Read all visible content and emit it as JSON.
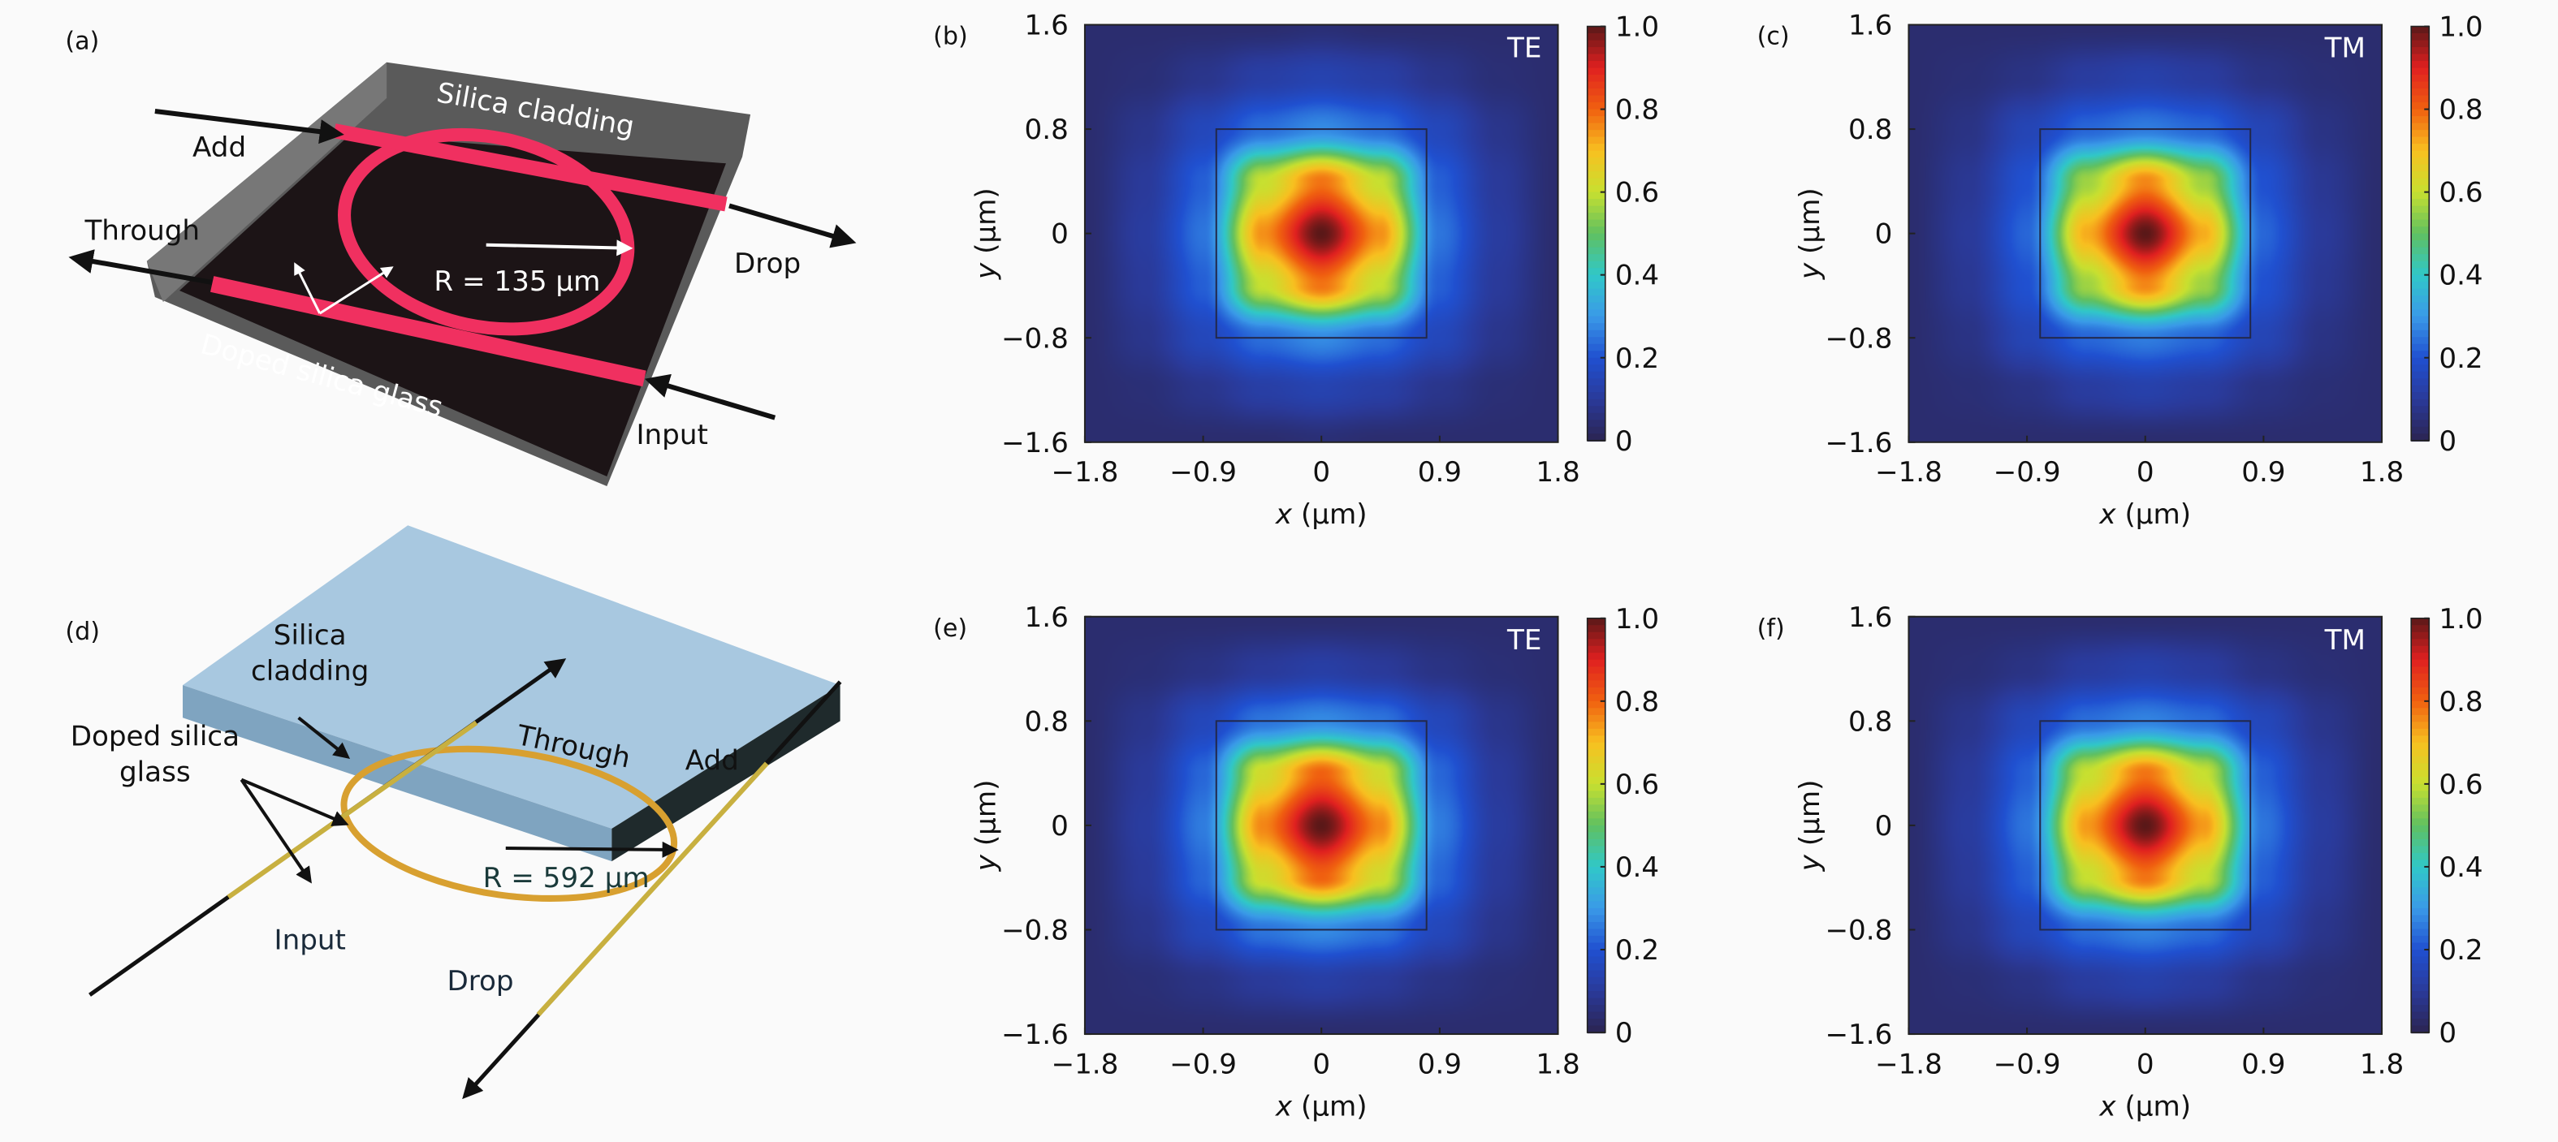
{
  "colormap": [
    "#2b2452",
    "#2a3a9a",
    "#2050d0",
    "#3a9ae8",
    "#30c8c8",
    "#60c060",
    "#c8e030",
    "#f8c020",
    "#f06010",
    "#e02020",
    "#5a1818"
  ],
  "panel_a": {
    "label": "(a)",
    "add": "Add",
    "silica_cladding": "Silica cladding",
    "through": "Through",
    "drop": "Drop",
    "radius": "R = 135 μm",
    "doped": "Doped silica glass",
    "input": "Input",
    "ring_color": "#f03060"
  },
  "panel_d": {
    "label": "(d)",
    "silica_line1": "Silica",
    "silica_line2": "cladding",
    "doped_line1": "Doped silica",
    "doped_line2": "glass",
    "through": "Through",
    "add": "Add",
    "radius": "R = 592 μm",
    "input": "Input",
    "drop": "Drop",
    "ring_color": "#d8a030"
  },
  "chart_data": [
    {
      "type": "heatmap",
      "panel": "(b)",
      "annotation": "TE",
      "xlabel": "x (μm)",
      "ylabel": "y (μm)",
      "xlim": [
        -1.8,
        1.8
      ],
      "ylim": [
        -1.6,
        1.6
      ],
      "xticks": [
        "−1.8",
        "−0.9",
        "0",
        "0.9",
        "1.8"
      ],
      "yticks": [
        "1.6",
        "0.8",
        "0",
        "−0.8",
        "−1.6"
      ],
      "colorbar": {
        "range": [
          0,
          1
        ],
        "ticks": [
          "1.0",
          "0.8",
          "0.6",
          "0.4",
          "0.2",
          "0"
        ]
      },
      "x": [
        -1.8,
        -1.35,
        -0.9,
        -0.45,
        0,
        0.45,
        0.9,
        1.35,
        1.8
      ],
      "y": [
        1.6,
        1.2,
        0.8,
        0.4,
        0,
        -0.4,
        -0.8,
        -1.2,
        -1.6
      ],
      "z": [
        [
          0.04,
          0.04,
          0.04,
          0.04,
          0.05,
          0.04,
          0.04,
          0.04,
          0.04
        ],
        [
          0.04,
          0.05,
          0.08,
          0.12,
          0.14,
          0.12,
          0.08,
          0.05,
          0.04
        ],
        [
          0.04,
          0.08,
          0.16,
          0.24,
          0.28,
          0.24,
          0.16,
          0.08,
          0.04
        ],
        [
          0.04,
          0.1,
          0.22,
          0.6,
          0.78,
          0.6,
          0.22,
          0.1,
          0.04
        ],
        [
          0.04,
          0.11,
          0.25,
          0.75,
          1.0,
          0.75,
          0.25,
          0.11,
          0.04
        ],
        [
          0.04,
          0.1,
          0.22,
          0.6,
          0.78,
          0.6,
          0.22,
          0.1,
          0.04
        ],
        [
          0.04,
          0.08,
          0.16,
          0.24,
          0.28,
          0.24,
          0.16,
          0.08,
          0.04
        ],
        [
          0.04,
          0.05,
          0.08,
          0.12,
          0.14,
          0.12,
          0.08,
          0.05,
          0.04
        ],
        [
          0.04,
          0.04,
          0.04,
          0.04,
          0.05,
          0.04,
          0.04,
          0.04,
          0.04
        ]
      ]
    },
    {
      "type": "heatmap",
      "panel": "(c)",
      "annotation": "TM",
      "xlabel": "x (μm)",
      "ylabel": "y (μm)",
      "xlim": [
        -1.8,
        1.8
      ],
      "ylim": [
        -1.6,
        1.6
      ],
      "xticks": [
        "−1.8",
        "−0.9",
        "0",
        "0.9",
        "1.8"
      ],
      "yticks": [
        "1.6",
        "0.8",
        "0",
        "−0.8",
        "−1.6"
      ],
      "colorbar": {
        "range": [
          0,
          1
        ],
        "ticks": [
          "1.0",
          "0.8",
          "0.6",
          "0.4",
          "0.2",
          "0"
        ]
      },
      "x": [
        -1.8,
        -1.35,
        -0.9,
        -0.45,
        0,
        0.45,
        0.9,
        1.35,
        1.8
      ],
      "y": [
        1.6,
        1.2,
        0.8,
        0.4,
        0,
        -0.4,
        -0.8,
        -1.2,
        -1.6
      ],
      "z": [
        [
          0.04,
          0.04,
          0.04,
          0.04,
          0.04,
          0.04,
          0.04,
          0.04,
          0.04
        ],
        [
          0.04,
          0.05,
          0.07,
          0.11,
          0.13,
          0.11,
          0.07,
          0.05,
          0.04
        ],
        [
          0.04,
          0.07,
          0.15,
          0.23,
          0.26,
          0.23,
          0.15,
          0.07,
          0.04
        ],
        [
          0.04,
          0.09,
          0.2,
          0.56,
          0.76,
          0.56,
          0.2,
          0.09,
          0.04
        ],
        [
          0.04,
          0.1,
          0.23,
          0.72,
          1.0,
          0.72,
          0.23,
          0.1,
          0.04
        ],
        [
          0.04,
          0.09,
          0.2,
          0.56,
          0.76,
          0.56,
          0.2,
          0.09,
          0.04
        ],
        [
          0.04,
          0.07,
          0.15,
          0.23,
          0.26,
          0.23,
          0.15,
          0.07,
          0.04
        ],
        [
          0.04,
          0.05,
          0.07,
          0.11,
          0.13,
          0.11,
          0.07,
          0.05,
          0.04
        ],
        [
          0.04,
          0.04,
          0.04,
          0.04,
          0.04,
          0.04,
          0.04,
          0.04,
          0.04
        ]
      ]
    },
    {
      "type": "heatmap",
      "panel": "(e)",
      "annotation": "TE",
      "xlabel": "x (μm)",
      "ylabel": "y (μm)",
      "xlim": [
        -1.8,
        1.8
      ],
      "ylim": [
        -1.6,
        1.6
      ],
      "xticks": [
        "−1.8",
        "−0.9",
        "0",
        "0.9",
        "1.8"
      ],
      "yticks": [
        "1.6",
        "0.8",
        "0",
        "−0.8",
        "−1.6"
      ],
      "colorbar": {
        "range": [
          0,
          1
        ],
        "ticks": [
          "1.0",
          "0.8",
          "0.6",
          "0.4",
          "0.2",
          "0"
        ]
      },
      "x": [
        -1.8,
        -1.35,
        -0.9,
        -0.45,
        0,
        0.45,
        0.9,
        1.35,
        1.8
      ],
      "y": [
        1.6,
        1.2,
        0.8,
        0.4,
        0,
        -0.4,
        -0.8,
        -1.2,
        -1.6
      ],
      "z": [
        [
          0.04,
          0.04,
          0.04,
          0.04,
          0.04,
          0.04,
          0.04,
          0.04,
          0.04
        ],
        [
          0.04,
          0.05,
          0.07,
          0.1,
          0.12,
          0.1,
          0.07,
          0.05,
          0.04
        ],
        [
          0.04,
          0.08,
          0.16,
          0.25,
          0.28,
          0.25,
          0.16,
          0.08,
          0.04
        ],
        [
          0.04,
          0.1,
          0.23,
          0.62,
          0.8,
          0.62,
          0.23,
          0.1,
          0.04
        ],
        [
          0.04,
          0.11,
          0.26,
          0.76,
          1.0,
          0.76,
          0.26,
          0.11,
          0.04
        ],
        [
          0.04,
          0.1,
          0.23,
          0.62,
          0.8,
          0.62,
          0.23,
          0.1,
          0.04
        ],
        [
          0.04,
          0.08,
          0.16,
          0.25,
          0.28,
          0.25,
          0.16,
          0.08,
          0.04
        ],
        [
          0.04,
          0.05,
          0.07,
          0.1,
          0.12,
          0.1,
          0.07,
          0.05,
          0.04
        ],
        [
          0.04,
          0.04,
          0.04,
          0.04,
          0.04,
          0.04,
          0.04,
          0.04,
          0.04
        ]
      ]
    },
    {
      "type": "heatmap",
      "panel": "(f)",
      "annotation": "TM",
      "xlabel": "x (μm)",
      "ylabel": "y (μm)",
      "xlim": [
        -1.8,
        1.8
      ],
      "ylim": [
        -1.6,
        1.6
      ],
      "xticks": [
        "−1.8",
        "−0.9",
        "0",
        "0.9",
        "1.8"
      ],
      "yticks": [
        "1.6",
        "0.8",
        "0",
        "−0.8",
        "−1.6"
      ],
      "colorbar": {
        "range": [
          0,
          1
        ],
        "ticks": [
          "1.0",
          "0.8",
          "0.6",
          "0.4",
          "0.2",
          "0"
        ]
      },
      "x": [
        -1.8,
        -1.35,
        -0.9,
        -0.45,
        0,
        0.45,
        0.9,
        1.35,
        1.8
      ],
      "y": [
        1.6,
        1.2,
        0.8,
        0.4,
        0,
        -0.4,
        -0.8,
        -1.2,
        -1.6
      ],
      "z": [
        [
          0.04,
          0.04,
          0.04,
          0.04,
          0.04,
          0.04,
          0.04,
          0.04,
          0.04
        ],
        [
          0.04,
          0.05,
          0.07,
          0.11,
          0.13,
          0.11,
          0.07,
          0.05,
          0.04
        ],
        [
          0.04,
          0.08,
          0.16,
          0.24,
          0.27,
          0.24,
          0.16,
          0.08,
          0.04
        ],
        [
          0.04,
          0.1,
          0.22,
          0.6,
          0.78,
          0.6,
          0.22,
          0.1,
          0.04
        ],
        [
          0.04,
          0.11,
          0.25,
          0.74,
          1.0,
          0.74,
          0.25,
          0.11,
          0.04
        ],
        [
          0.04,
          0.1,
          0.22,
          0.6,
          0.78,
          0.6,
          0.22,
          0.1,
          0.04
        ],
        [
          0.04,
          0.08,
          0.16,
          0.24,
          0.27,
          0.24,
          0.16,
          0.08,
          0.04
        ],
        [
          0.04,
          0.05,
          0.07,
          0.11,
          0.13,
          0.11,
          0.07,
          0.05,
          0.04
        ],
        [
          0.04,
          0.04,
          0.04,
          0.04,
          0.04,
          0.04,
          0.04,
          0.04,
          0.04
        ]
      ]
    }
  ]
}
